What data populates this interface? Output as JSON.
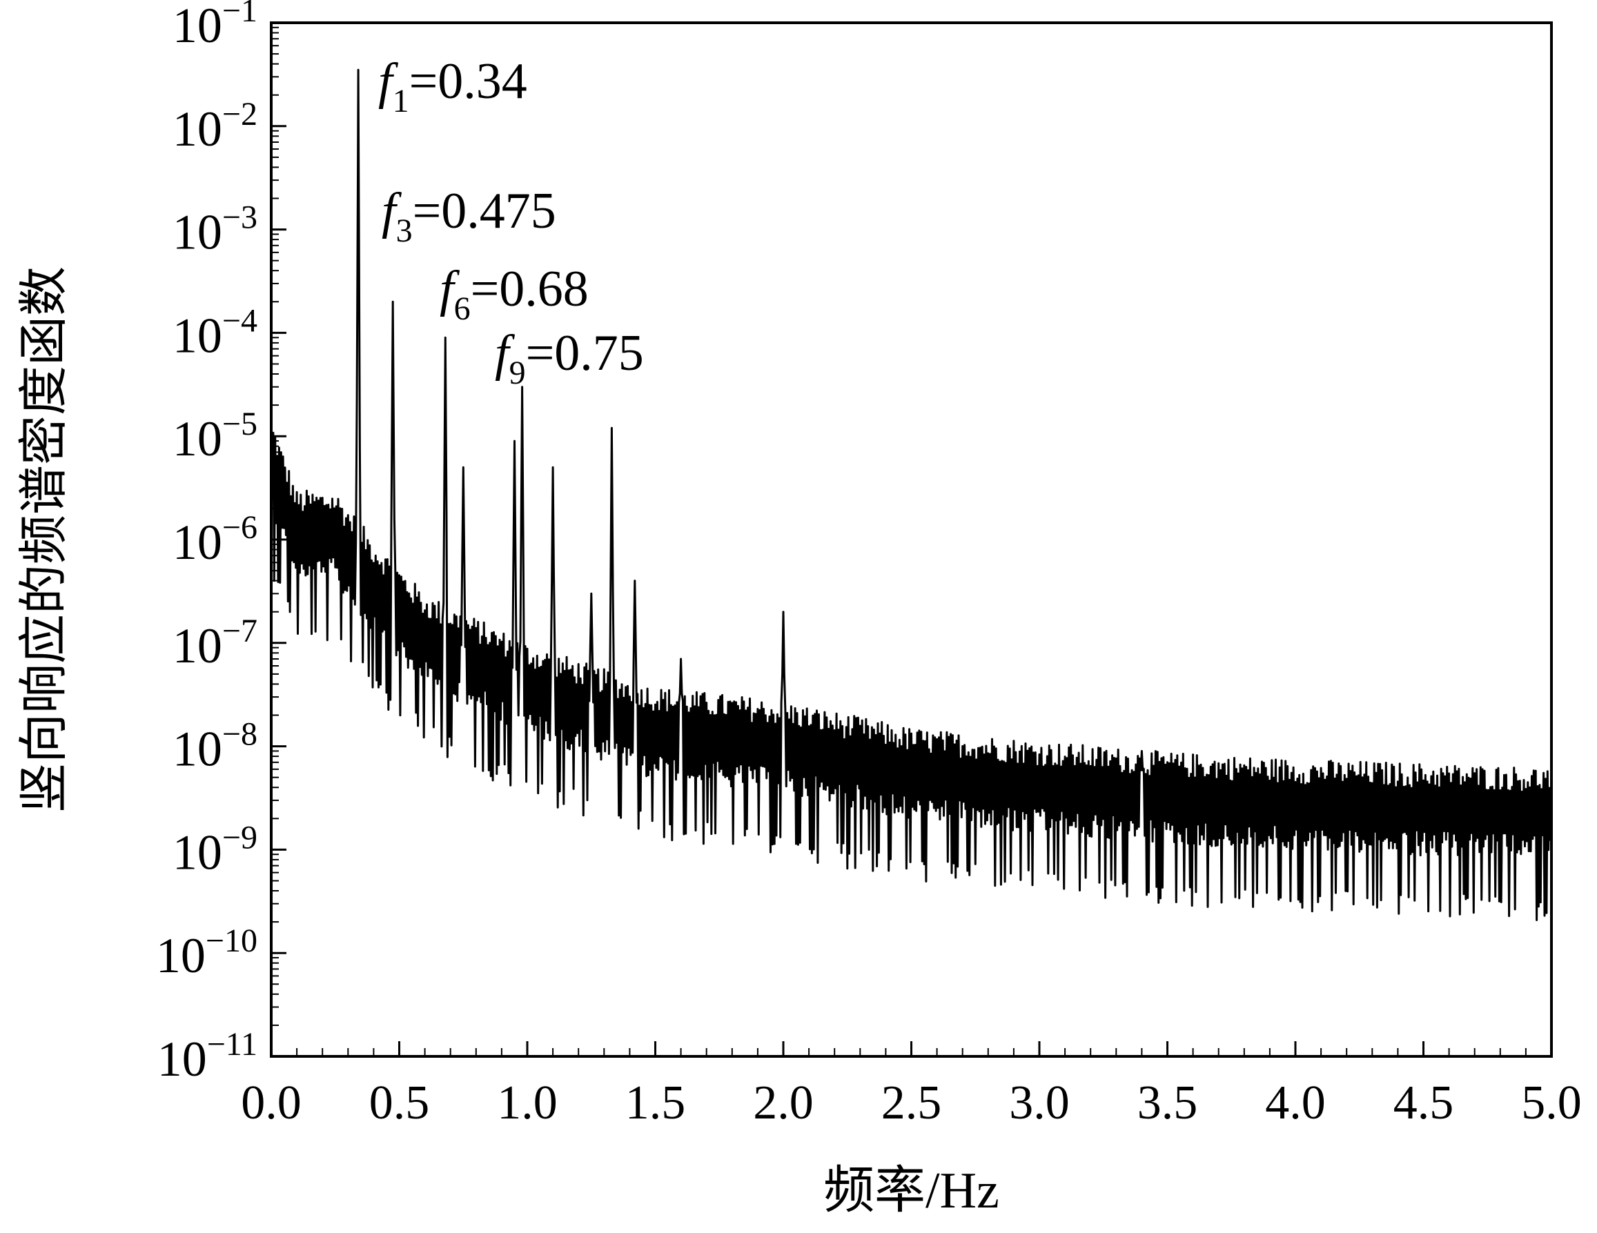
{
  "chart_data": {
    "type": "line",
    "title": "",
    "xlabel": "频率/Hz",
    "ylabel": "竖向响应的频谱密度函数",
    "xlim": [
      0.0,
      5.0
    ],
    "ylim_exponents": [
      -11,
      -1
    ],
    "yscale": "log",
    "grid": false,
    "legend": "none",
    "x_tick_labels": [
      "0.0",
      "0.5",
      "1.0",
      "1.5",
      "2.0",
      "2.5",
      "3.0",
      "3.5",
      "4.0",
      "4.5",
      "5.0"
    ],
    "y_ticks": [
      {
        "base": "10",
        "exp": "−1"
      },
      {
        "base": "10",
        "exp": "−2"
      },
      {
        "base": "10",
        "exp": "−3"
      },
      {
        "base": "10",
        "exp": "−4"
      },
      {
        "base": "10",
        "exp": "−5"
      },
      {
        "base": "10",
        "exp": "−6"
      },
      {
        "base": "10",
        "exp": "−7"
      },
      {
        "base": "10",
        "exp": "−8"
      },
      {
        "base": "10",
        "exp": "−9"
      },
      {
        "base": "10",
        "exp": "−10"
      },
      {
        "base": "10",
        "exp": "−11"
      }
    ],
    "annotations": [
      {
        "sym": "f",
        "sub": "1",
        "text": "=0.34"
      },
      {
        "sym": "f",
        "sub": "3",
        "text": "=0.475"
      },
      {
        "sym": "f",
        "sub": "6",
        "text": "=0.68"
      },
      {
        "sym": "f",
        "sub": "9",
        "text": "=0.75"
      }
    ],
    "peaks": [
      {
        "x": 0.34,
        "y": 0.035
      },
      {
        "x": 0.475,
        "y": 0.0002
      },
      {
        "x": 0.68,
        "y": 9e-05
      },
      {
        "x": 0.75,
        "y": 5e-06
      },
      {
        "x": 0.98,
        "y": 3e-05
      },
      {
        "x": 0.95,
        "y": 9e-06
      },
      {
        "x": 1.1,
        "y": 5e-06
      },
      {
        "x": 1.25,
        "y": 3e-07
      },
      {
        "x": 1.33,
        "y": 1.2e-05
      },
      {
        "x": 1.42,
        "y": 4e-07
      },
      {
        "x": 1.6,
        "y": 7e-08
      },
      {
        "x": 2.0,
        "y": 2e-07
      },
      {
        "x": 3.4,
        "y": 9e-09
      }
    ],
    "baseline": [
      {
        "x": 0.0,
        "y": 6e-06
      },
      {
        "x": 0.1,
        "y": 1.2e-06
      },
      {
        "x": 0.25,
        "y": 1.2e-06
      },
      {
        "x": 0.4,
        "y": 4e-07
      },
      {
        "x": 0.6,
        "y": 1.2e-07
      },
      {
        "x": 1.0,
        "y": 4e-08
      },
      {
        "x": 1.5,
        "y": 1.5e-08
      },
      {
        "x": 2.0,
        "y": 1.1e-08
      },
      {
        "x": 2.5,
        "y": 6e-09
      },
      {
        "x": 3.0,
        "y": 4.5e-09
      },
      {
        "x": 3.5,
        "y": 3.5e-09
      },
      {
        "x": 4.0,
        "y": 3e-09
      },
      {
        "x": 5.0,
        "y": 2.5e-09
      }
    ]
  }
}
